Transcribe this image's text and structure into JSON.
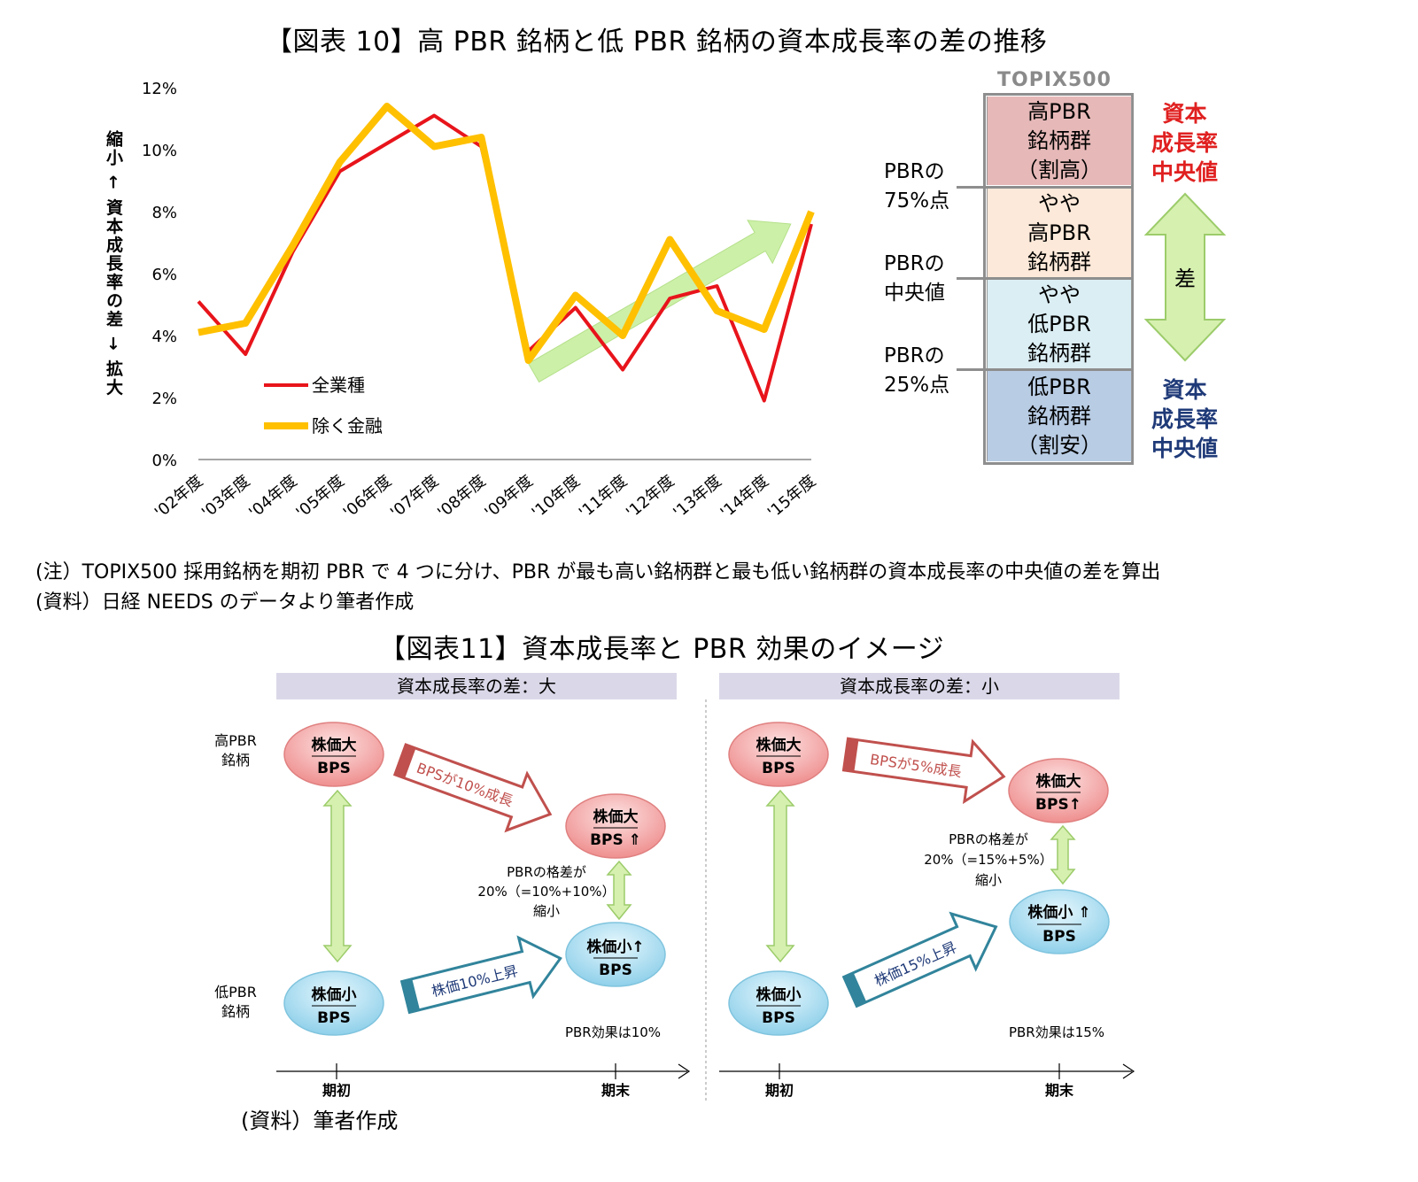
{
  "fig10": {
    "title": "【図表 10】高 PBR 銘柄と低 PBR 銘柄の資本成長率の差の推移",
    "y_axis_label": "縮小 ← 資本成長率の差 → 拡大",
    "legend": {
      "s1": "全業種",
      "s2": "除く金融"
    },
    "topix_label": "TOPIX500",
    "boxes": {
      "b1": [
        "高PBR",
        "銘柄群",
        "（割高）"
      ],
      "b2": [
        "やや",
        "高PBR",
        "銘柄群"
      ],
      "b3": [
        "やや",
        "低PBR",
        "銘柄群"
      ],
      "b4": [
        "低PBR",
        "銘柄群",
        "（割安）"
      ]
    },
    "side_labels": {
      "p75": [
        "PBRの",
        "75%点"
      ],
      "pmed": [
        "PBRの",
        "中央値"
      ],
      "p25": [
        "PBRの",
        "25%点"
      ]
    },
    "right_top": [
      "資本",
      "成長率",
      "中央値"
    ],
    "right_mid": "差",
    "right_bottom": [
      "資本",
      "成長率",
      "中央値"
    ],
    "colors": {
      "all": "#e8141b",
      "ex_fin": "#ffc000",
      "trend_arrow": "#ccf0a8",
      "box1": "#e6b9b8",
      "box2": "#fde9d9",
      "box3": "#dbeef4",
      "box4": "#b8cce4"
    }
  },
  "chart_data": {
    "type": "line",
    "categories": [
      "'02年度",
      "'03年度",
      "'04年度",
      "'05年度",
      "'06年度",
      "'07年度",
      "'08年度",
      "'09年度",
      "'10年度",
      "'11年度",
      "'12年度",
      "'13年度",
      "'14年度",
      "'15年度"
    ],
    "series": [
      {
        "name": "全業種",
        "values": [
          5.1,
          3.4,
          6.7,
          9.3,
          10.2,
          11.1,
          10.1,
          3.5,
          4.9,
          2.9,
          5.2,
          5.6,
          1.9,
          7.6
        ]
      },
      {
        "name": "除く金融",
        "values": [
          4.1,
          4.4,
          6.9,
          9.6,
          11.4,
          10.1,
          10.4,
          3.2,
          5.3,
          4.0,
          7.1,
          4.8,
          4.2,
          8.0
        ]
      }
    ],
    "yticks": [
      "0%",
      "2%",
      "4%",
      "6%",
      "8%",
      "10%",
      "12%"
    ],
    "ylim": [
      0,
      12
    ],
    "grid": false
  },
  "notes": {
    "n1": "(注）TOPIX500 採用銘柄を期初 PBR で 4 つに分け、PBR が最も高い銘柄群と最も低い銘柄群の資本成長率の中央値の差を算出",
    "n2": "(資料）日経 NEEDS のデータより筆者作成"
  },
  "fig11": {
    "title": "【図表11】資本成長率と PBR 効果のイメージ",
    "left": {
      "header": "資本成長率の差：大",
      "row_high": [
        "高PBR",
        "銘柄"
      ],
      "row_low": [
        "低PBR",
        "銘柄"
      ],
      "e_high_start": [
        "株価大",
        "BPS"
      ],
      "e_low_start": [
        "株価小",
        "BPS"
      ],
      "e_high_end": [
        "株価大",
        "BPS ⇑"
      ],
      "e_low_end": [
        "株価小↑",
        "BPS"
      ],
      "arrow_top": "BPSが10%成長",
      "arrow_bottom": "株価10%上昇",
      "gap": [
        "PBRの格差が",
        "20%（=10%+10%）",
        "縮小"
      ],
      "effect": "PBR効果は10%",
      "x_start": "期初",
      "x_end": "期末"
    },
    "right": {
      "header": "資本成長率の差：小",
      "e_high_start": [
        "株価大",
        "BPS"
      ],
      "e_low_start": [
        "株価小",
        "BPS"
      ],
      "e_high_end": [
        "株価大",
        "BPS↑"
      ],
      "e_low_end": [
        "株価小 ⇑",
        "BPS"
      ],
      "arrow_top": "BPSが5%成長",
      "arrow_bottom": "株価15%上昇",
      "gap": [
        "PBRの格差が",
        "20%（=15%+5%）",
        "縮小"
      ],
      "effect": "PBR効果は15%",
      "x_start": "期初",
      "x_end": "期末"
    },
    "source": "(資料）筆者作成",
    "colors": {
      "red_ellipse": "#f4a3a3",
      "blue_ellipse": "#a9dbee",
      "red_arrow": "#c0504d",
      "blue_arrow": "#31849b",
      "green_arrow": "#d6f0b0"
    }
  }
}
